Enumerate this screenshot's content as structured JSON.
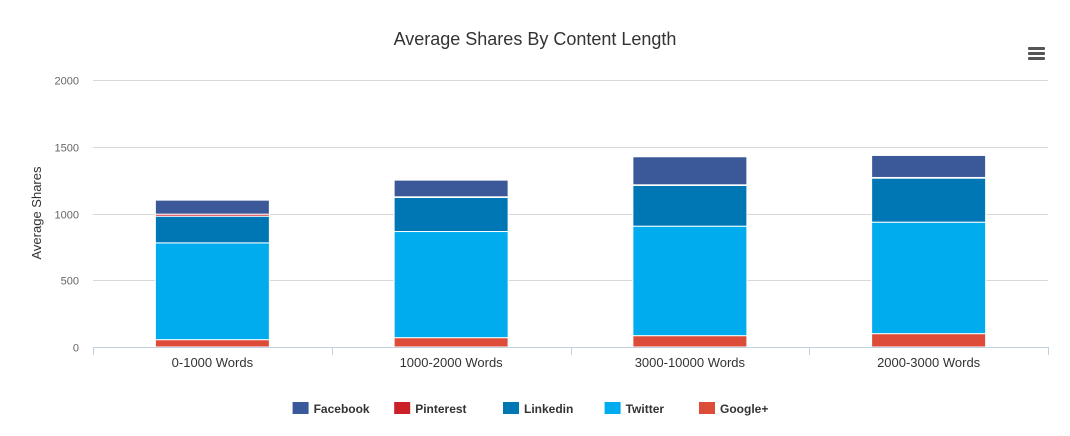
{
  "chart_data": {
    "type": "bar",
    "stacked": true,
    "title": "Average Shares By Content Length",
    "xlabel": "",
    "ylabel": "Average Shares",
    "ylim": [
      0,
      2000
    ],
    "yticks": [
      0,
      500,
      1000,
      1500,
      2000
    ],
    "grid": true,
    "legend_position": "bottom",
    "categories": [
      "0-1000 Words",
      "1000-2000 Words",
      "3000-10000 Words",
      "2000-3000 Words"
    ],
    "series": [
      {
        "name": "Facebook",
        "color": "#3b5998",
        "values": [
          105,
          125,
          210,
          165
        ]
      },
      {
        "name": "Pinterest",
        "color": "#cb2027",
        "values": [
          15,
          5,
          5,
          5
        ]
      },
      {
        "name": "Linkedin",
        "color": "#0077b5",
        "values": [
          200,
          255,
          305,
          330
        ]
      },
      {
        "name": "Twitter",
        "color": "#00acee",
        "values": [
          725,
          795,
          820,
          835
        ]
      },
      {
        "name": "Google+",
        "color": "#dd4b39",
        "values": [
          55,
          70,
          85,
          100
        ]
      }
    ]
  },
  "menu_icon": "hamburger-menu-icon"
}
